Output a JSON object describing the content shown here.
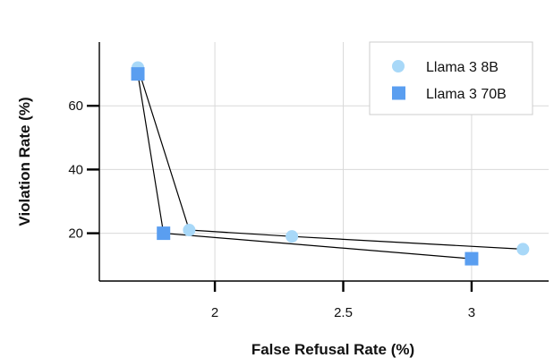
{
  "chart_data": {
    "type": "scatter",
    "title": "",
    "xlabel": "False Refusal Rate (%)",
    "ylabel": "Violation Rate (%)",
    "xlim": [
      1.55,
      3.3
    ],
    "ylim": [
      5,
      80
    ],
    "x_ticks": [
      2,
      2.5,
      3
    ],
    "x_tick_labels": [
      "2",
      "2.5",
      "3"
    ],
    "y_ticks": [
      20,
      40,
      60
    ],
    "y_tick_labels": [
      "20",
      "40",
      "60"
    ],
    "grid": true,
    "legend_position": "top-right",
    "points_connected_by_line": true,
    "series": [
      {
        "name": "Llama 3 8B",
        "marker": "circle",
        "color": "#a8d8f8",
        "points": [
          {
            "x": 1.7,
            "y": 72
          },
          {
            "x": 1.9,
            "y": 21
          },
          {
            "x": 2.3,
            "y": 19
          },
          {
            "x": 3.2,
            "y": 15
          }
        ]
      },
      {
        "name": "Llama 3 70B",
        "marker": "square",
        "color": "#5a9ef0",
        "points": [
          {
            "x": 1.7,
            "y": 70
          },
          {
            "x": 1.8,
            "y": 20
          },
          {
            "x": 3.0,
            "y": 12
          }
        ]
      }
    ]
  }
}
